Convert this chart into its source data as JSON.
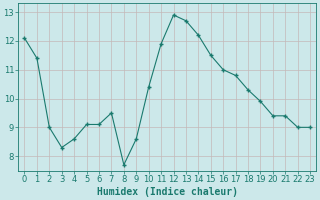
{
  "x": [
    0,
    1,
    2,
    3,
    4,
    5,
    6,
    7,
    8,
    9,
    10,
    11,
    12,
    13,
    14,
    15,
    16,
    17,
    18,
    19,
    20,
    21,
    22,
    23
  ],
  "y": [
    12.1,
    11.4,
    9.0,
    8.3,
    8.6,
    9.1,
    9.1,
    9.5,
    7.7,
    8.6,
    10.4,
    11.9,
    12.9,
    12.7,
    12.2,
    11.5,
    11.0,
    10.8,
    10.3,
    9.9,
    9.4,
    9.4,
    9.0,
    9.0
  ],
  "line_color": "#1a7a6e",
  "marker_color": "#1a7a6e",
  "bg_color": "#cce8ea",
  "grid_color_major": "#c4b8b8",
  "grid_color_minor": "#d8ecee",
  "xlabel": "Humidex (Indice chaleur)",
  "ylim": [
    7.5,
    13.3
  ],
  "xlim": [
    -0.5,
    23.5
  ],
  "yticks": [
    8,
    9,
    10,
    11,
    12,
    13
  ],
  "xticks": [
    0,
    1,
    2,
    3,
    4,
    5,
    6,
    7,
    8,
    9,
    10,
    11,
    12,
    13,
    14,
    15,
    16,
    17,
    18,
    19,
    20,
    21,
    22,
    23
  ],
  "font_color": "#1a7a6e",
  "label_fontsize": 7.0,
  "tick_fontsize": 6.0
}
